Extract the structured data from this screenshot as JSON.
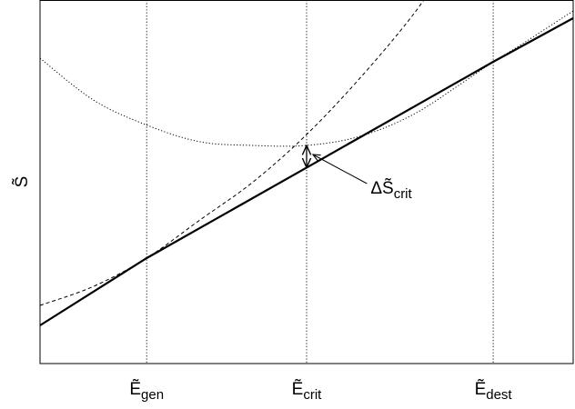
{
  "chart_data": {
    "type": "line",
    "title": "",
    "xlabel": "",
    "ylabel": "S̃",
    "xlim": [
      0,
      10
    ],
    "ylim": [
      0,
      10
    ],
    "grid": false,
    "xticks": [
      {
        "value": 2,
        "base": "Ẽ",
        "sub": "gen"
      },
      {
        "value": 5,
        "base": "Ẽ",
        "sub": "crit"
      },
      {
        "value": 8.5,
        "base": "Ẽ",
        "sub": "dest"
      }
    ],
    "series": [
      {
        "style": "solid-thick",
        "color": "#000000",
        "x": [
          0,
          2,
          5,
          8.5,
          10
        ],
        "y": [
          1.05,
          2.9,
          5.39,
          8.3,
          9.5
        ]
      },
      {
        "style": "dashed",
        "color": "#000000",
        "x": [
          0,
          1,
          2,
          3,
          4,
          5,
          6,
          7,
          7.75
        ],
        "y": [
          1.6,
          2.12,
          2.9,
          3.95,
          5.0,
          6.3,
          7.85,
          9.6,
          11.2
        ]
      },
      {
        "style": "dotted",
        "color": "#000000",
        "x": [
          0,
          1,
          2,
          3,
          4,
          5,
          6,
          7,
          8,
          8.5,
          9,
          10
        ],
        "y": [
          8.4,
          7.25,
          6.56,
          6.1,
          6.0,
          6.0,
          6.25,
          6.85,
          7.8,
          8.3,
          8.75,
          9.7
        ]
      }
    ],
    "annotations": [
      {
        "text_base": "ΔS̃",
        "text_sub": "crit",
        "target_x": 5.05,
        "target_y": 5.8,
        "label_x": 6.2,
        "label_y": 4.8
      }
    ],
    "double_arrow": {
      "x": 5,
      "y_from": 5.39,
      "y_to": 6.0
    }
  }
}
